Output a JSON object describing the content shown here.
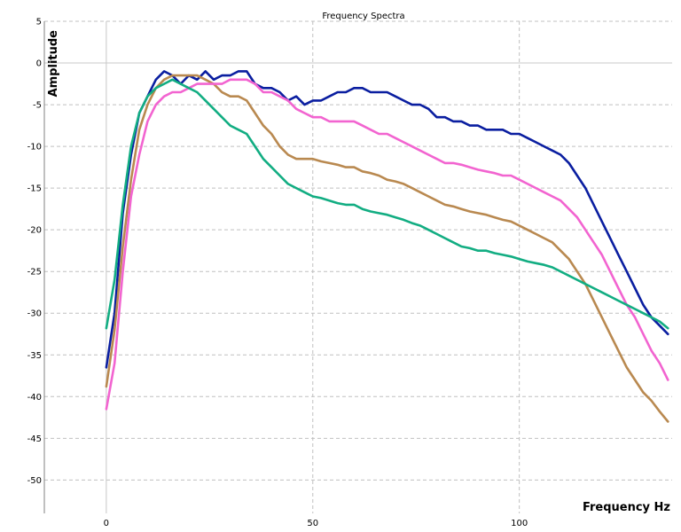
{
  "chart_data": {
    "type": "line",
    "title": "Frequency Spectra",
    "xlabel": "Frequency Hz",
    "ylabel": "Amplitude",
    "xlim": [
      -15,
      137
    ],
    "ylim": [
      -54,
      5
    ],
    "x_ticks": [
      0,
      50,
      100
    ],
    "y_ticks": [
      5,
      0,
      -5,
      -10,
      -15,
      -20,
      -25,
      -30,
      -35,
      -40,
      -45,
      -50
    ],
    "grid": true,
    "legend": "none",
    "series": [
      {
        "color": "#0a1ea0",
        "points": [
          [
            0,
            -36.5
          ],
          [
            2,
            -30
          ],
          [
            4,
            -18
          ],
          [
            6,
            -11
          ],
          [
            8,
            -6
          ],
          [
            10,
            -4
          ],
          [
            12,
            -2
          ],
          [
            14,
            -1
          ],
          [
            16,
            -1.5
          ],
          [
            18,
            -2.5
          ],
          [
            20,
            -1.5
          ],
          [
            22,
            -2
          ],
          [
            24,
            -1
          ],
          [
            26,
            -2
          ],
          [
            28,
            -1.5
          ],
          [
            30,
            -1.5
          ],
          [
            32,
            -1
          ],
          [
            34,
            -1
          ],
          [
            36,
            -2.5
          ],
          [
            38,
            -3
          ],
          [
            40,
            -3
          ],
          [
            42,
            -3.5
          ],
          [
            44,
            -4.5
          ],
          [
            46,
            -4
          ],
          [
            48,
            -5
          ],
          [
            50,
            -4.5
          ],
          [
            52,
            -4.5
          ],
          [
            54,
            -4
          ],
          [
            56,
            -3.5
          ],
          [
            58,
            -3.5
          ],
          [
            60,
            -3
          ],
          [
            62,
            -3
          ],
          [
            64,
            -3.5
          ],
          [
            66,
            -3.5
          ],
          [
            68,
            -3.5
          ],
          [
            70,
            -4
          ],
          [
            72,
            -4.5
          ],
          [
            74,
            -5
          ],
          [
            76,
            -5
          ],
          [
            78,
            -5.5
          ],
          [
            80,
            -6.5
          ],
          [
            82,
            -6.5
          ],
          [
            84,
            -7
          ],
          [
            86,
            -7
          ],
          [
            88,
            -7.5
          ],
          [
            90,
            -7.5
          ],
          [
            92,
            -8
          ],
          [
            94,
            -8
          ],
          [
            96,
            -8
          ],
          [
            98,
            -8.5
          ],
          [
            100,
            -8.5
          ],
          [
            102,
            -9
          ],
          [
            104,
            -9.5
          ],
          [
            106,
            -10
          ],
          [
            108,
            -10.5
          ],
          [
            110,
            -11
          ],
          [
            112,
            -12
          ],
          [
            114,
            -13.5
          ],
          [
            116,
            -15
          ],
          [
            118,
            -17
          ],
          [
            120,
            -19
          ],
          [
            122,
            -21
          ],
          [
            124,
            -23
          ],
          [
            126,
            -25
          ],
          [
            128,
            -27
          ],
          [
            130,
            -29
          ],
          [
            132,
            -30.5
          ],
          [
            134,
            -31.5
          ],
          [
            136,
            -32.5
          ]
        ]
      },
      {
        "color": "#b98950",
        "points": [
          [
            0,
            -38.8
          ],
          [
            2,
            -32
          ],
          [
            4,
            -22
          ],
          [
            6,
            -14
          ],
          [
            8,
            -8
          ],
          [
            10,
            -5
          ],
          [
            12,
            -3
          ],
          [
            14,
            -2
          ],
          [
            16,
            -1.5
          ],
          [
            18,
            -1.5
          ],
          [
            20,
            -1.5
          ],
          [
            22,
            -1.5
          ],
          [
            24,
            -2
          ],
          [
            26,
            -2.5
          ],
          [
            28,
            -3.5
          ],
          [
            30,
            -4
          ],
          [
            32,
            -4
          ],
          [
            34,
            -4.5
          ],
          [
            36,
            -6
          ],
          [
            38,
            -7.5
          ],
          [
            40,
            -8.5
          ],
          [
            42,
            -10
          ],
          [
            44,
            -11
          ],
          [
            46,
            -11.5
          ],
          [
            48,
            -11.5
          ],
          [
            50,
            -11.5
          ],
          [
            52,
            -11.8
          ],
          [
            54,
            -12
          ],
          [
            56,
            -12.2
          ],
          [
            58,
            -12.5
          ],
          [
            60,
            -12.5
          ],
          [
            62,
            -13
          ],
          [
            64,
            -13.2
          ],
          [
            66,
            -13.5
          ],
          [
            68,
            -14
          ],
          [
            70,
            -14.2
          ],
          [
            72,
            -14.5
          ],
          [
            74,
            -15
          ],
          [
            76,
            -15.5
          ],
          [
            78,
            -16
          ],
          [
            80,
            -16.5
          ],
          [
            82,
            -17
          ],
          [
            84,
            -17.2
          ],
          [
            86,
            -17.5
          ],
          [
            88,
            -17.8
          ],
          [
            90,
            -18
          ],
          [
            92,
            -18.2
          ],
          [
            94,
            -18.5
          ],
          [
            96,
            -18.8
          ],
          [
            98,
            -19
          ],
          [
            100,
            -19.5
          ],
          [
            102,
            -20
          ],
          [
            104,
            -20.5
          ],
          [
            106,
            -21
          ],
          [
            108,
            -21.5
          ],
          [
            110,
            -22.5
          ],
          [
            112,
            -23.5
          ],
          [
            114,
            -25
          ],
          [
            116,
            -26.5
          ],
          [
            118,
            -28.5
          ],
          [
            120,
            -30.5
          ],
          [
            122,
            -32.5
          ],
          [
            124,
            -34.5
          ],
          [
            126,
            -36.5
          ],
          [
            128,
            -38
          ],
          [
            130,
            -39.5
          ],
          [
            132,
            -40.5
          ],
          [
            134,
            -41.8
          ],
          [
            136,
            -43
          ]
        ]
      },
      {
        "color": "#f264d0",
        "points": [
          [
            0,
            -41.5
          ],
          [
            2,
            -36
          ],
          [
            4,
            -25
          ],
          [
            6,
            -16
          ],
          [
            8,
            -11
          ],
          [
            10,
            -7
          ],
          [
            12,
            -5
          ],
          [
            14,
            -4
          ],
          [
            16,
            -3.5
          ],
          [
            18,
            -3.5
          ],
          [
            20,
            -3
          ],
          [
            22,
            -2.5
          ],
          [
            24,
            -2.5
          ],
          [
            26,
            -2.5
          ],
          [
            28,
            -2.5
          ],
          [
            30,
            -2
          ],
          [
            32,
            -2
          ],
          [
            34,
            -2
          ],
          [
            36,
            -2.5
          ],
          [
            38,
            -3.5
          ],
          [
            40,
            -3.5
          ],
          [
            42,
            -4
          ],
          [
            44,
            -4.5
          ],
          [
            46,
            -5.5
          ],
          [
            48,
            -6
          ],
          [
            50,
            -6.5
          ],
          [
            52,
            -6.5
          ],
          [
            54,
            -7
          ],
          [
            56,
            -7
          ],
          [
            58,
            -7
          ],
          [
            60,
            -7
          ],
          [
            62,
            -7.5
          ],
          [
            64,
            -8
          ],
          [
            66,
            -8.5
          ],
          [
            68,
            -8.5
          ],
          [
            70,
            -9
          ],
          [
            72,
            -9.5
          ],
          [
            74,
            -10
          ],
          [
            76,
            -10.5
          ],
          [
            78,
            -11
          ],
          [
            80,
            -11.5
          ],
          [
            82,
            -12
          ],
          [
            84,
            -12
          ],
          [
            86,
            -12.2
          ],
          [
            88,
            -12.5
          ],
          [
            90,
            -12.8
          ],
          [
            92,
            -13
          ],
          [
            94,
            -13.2
          ],
          [
            96,
            -13.5
          ],
          [
            98,
            -13.5
          ],
          [
            100,
            -14
          ],
          [
            102,
            -14.5
          ],
          [
            104,
            -15
          ],
          [
            106,
            -15.5
          ],
          [
            108,
            -16
          ],
          [
            110,
            -16.5
          ],
          [
            112,
            -17.5
          ],
          [
            114,
            -18.5
          ],
          [
            116,
            -20
          ],
          [
            118,
            -21.5
          ],
          [
            120,
            -23
          ],
          [
            122,
            -25
          ],
          [
            124,
            -27
          ],
          [
            126,
            -29
          ],
          [
            128,
            -30.5
          ],
          [
            130,
            -32.5
          ],
          [
            132,
            -34.5
          ],
          [
            134,
            -36
          ],
          [
            136,
            -38
          ]
        ]
      },
      {
        "color": "#12ad82",
        "points": [
          [
            0,
            -31.8
          ],
          [
            2,
            -26
          ],
          [
            4,
            -17
          ],
          [
            6,
            -10
          ],
          [
            8,
            -6
          ],
          [
            10,
            -4
          ],
          [
            12,
            -3
          ],
          [
            14,
            -2.5
          ],
          [
            16,
            -2
          ],
          [
            18,
            -2.5
          ],
          [
            20,
            -3
          ],
          [
            22,
            -3.5
          ],
          [
            24,
            -4.5
          ],
          [
            26,
            -5.5
          ],
          [
            28,
            -6.5
          ],
          [
            30,
            -7.5
          ],
          [
            32,
            -8
          ],
          [
            34,
            -8.5
          ],
          [
            36,
            -10
          ],
          [
            38,
            -11.5
          ],
          [
            40,
            -12.5
          ],
          [
            42,
            -13.5
          ],
          [
            44,
            -14.5
          ],
          [
            46,
            -15
          ],
          [
            48,
            -15.5
          ],
          [
            50,
            -16
          ],
          [
            52,
            -16.2
          ],
          [
            54,
            -16.5
          ],
          [
            56,
            -16.8
          ],
          [
            58,
            -17
          ],
          [
            60,
            -17
          ],
          [
            62,
            -17.5
          ],
          [
            64,
            -17.8
          ],
          [
            66,
            -18
          ],
          [
            68,
            -18.2
          ],
          [
            70,
            -18.5
          ],
          [
            72,
            -18.8
          ],
          [
            74,
            -19.2
          ],
          [
            76,
            -19.5
          ],
          [
            78,
            -20
          ],
          [
            80,
            -20.5
          ],
          [
            82,
            -21
          ],
          [
            84,
            -21.5
          ],
          [
            86,
            -22
          ],
          [
            88,
            -22.2
          ],
          [
            90,
            -22.5
          ],
          [
            92,
            -22.5
          ],
          [
            94,
            -22.8
          ],
          [
            96,
            -23
          ],
          [
            98,
            -23.2
          ],
          [
            100,
            -23.5
          ],
          [
            102,
            -23.8
          ],
          [
            104,
            -24
          ],
          [
            106,
            -24.2
          ],
          [
            108,
            -24.5
          ],
          [
            110,
            -25
          ],
          [
            112,
            -25.5
          ],
          [
            114,
            -26
          ],
          [
            116,
            -26.5
          ],
          [
            118,
            -27
          ],
          [
            120,
            -27.5
          ],
          [
            122,
            -28
          ],
          [
            124,
            -28.5
          ],
          [
            126,
            -29
          ],
          [
            128,
            -29.5
          ],
          [
            130,
            -30
          ],
          [
            132,
            -30.5
          ],
          [
            134,
            -31
          ],
          [
            136,
            -31.8
          ]
        ]
      }
    ]
  }
}
